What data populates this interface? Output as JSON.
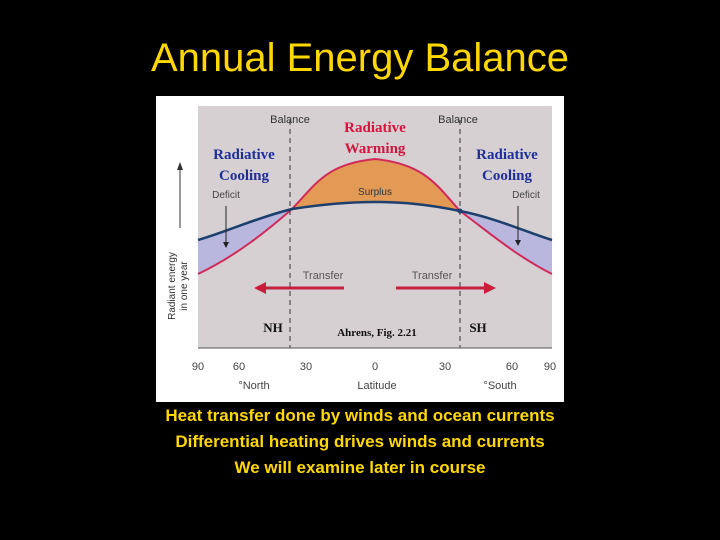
{
  "title": "Annual Energy Balance",
  "figure": {
    "balance_left": "Balance",
    "balance_right": "Balance",
    "warming_line1": "Radiative",
    "warming_line2": "Warming",
    "cooling_left_line1": "Radiative",
    "cooling_left_line2": "Cooling",
    "cooling_right_line1": "Radiative",
    "cooling_right_line2": "Cooling",
    "deficit_left": "Deficit",
    "deficit_right": "Deficit",
    "surplus": "Surplus",
    "transfer_left": "Transfer",
    "transfer_right": "Transfer",
    "nh": "NH",
    "sh": "SH",
    "source": "Ahrens, Fig. 2.21",
    "y_label_line1": "Radiant energy",
    "y_label_line2": "in one year",
    "x_ticks": [
      "90",
      "60",
      "30",
      "0",
      "30",
      "60",
      "90"
    ],
    "x_label_north": "°North",
    "x_label_center": "Latitude",
    "x_label_south": "°South",
    "colors": {
      "panel": "#d6d0d3",
      "surplus_fill": "#e39a55",
      "deficit_fill": "#b9b7dd",
      "absorbed_curve": "#d12a5a",
      "emitted_curve": "#1d3f6e",
      "label_red": "#d4143c",
      "label_blue": "#1f2f9a",
      "arrow": "#c81e3c"
    }
  },
  "captions": [
    "Heat transfer done by winds and ocean currents",
    "Differential heating drives winds and currents",
    "We will examine later in course"
  ]
}
